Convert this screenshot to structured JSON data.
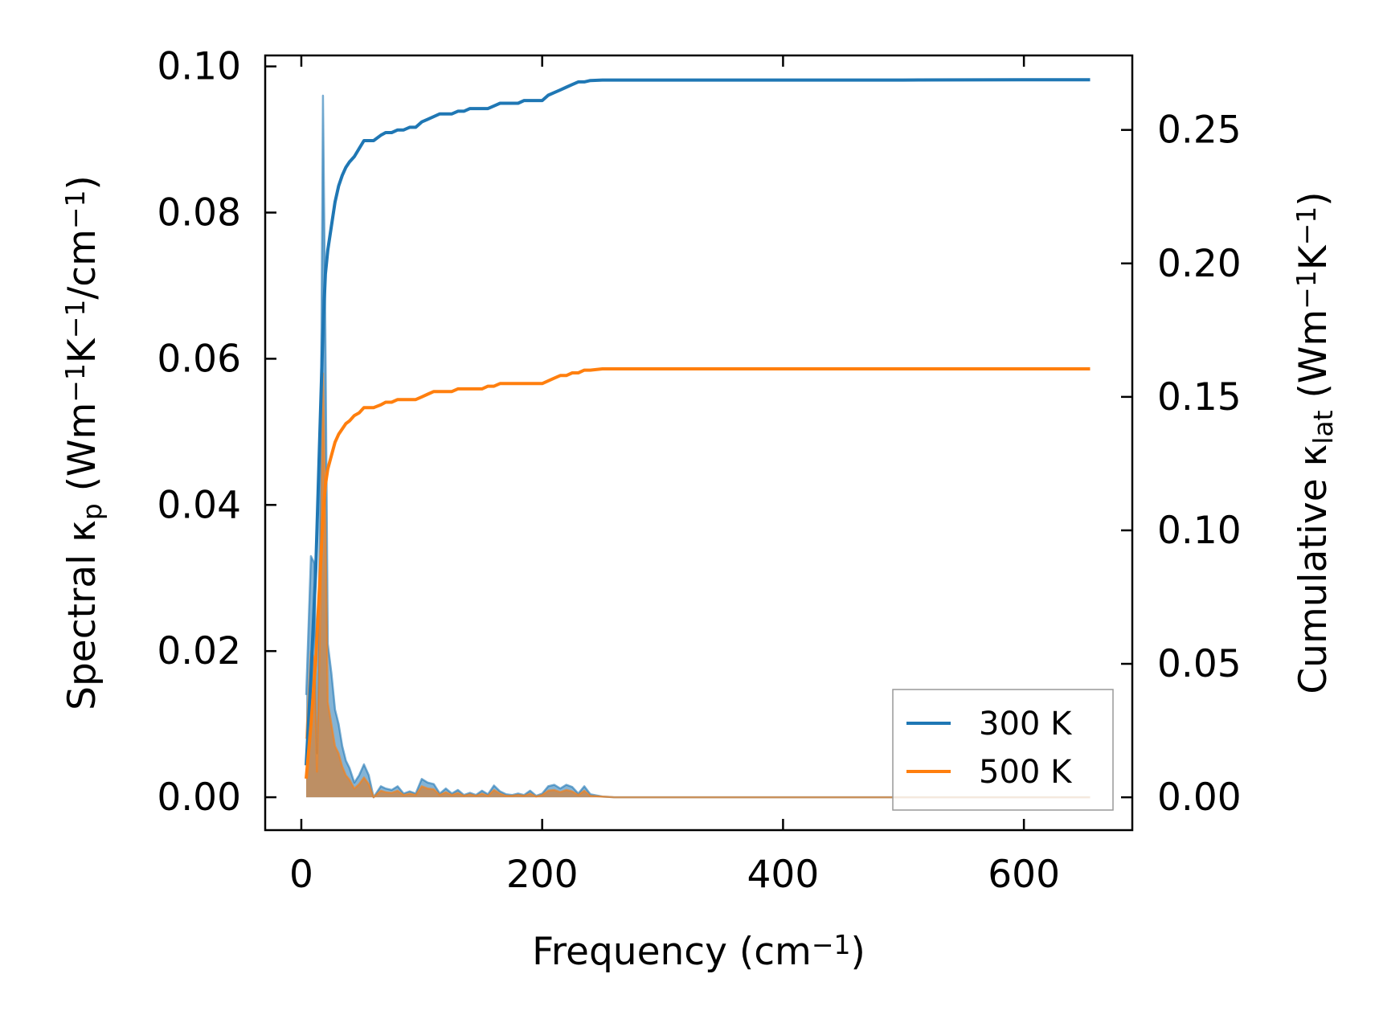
{
  "chart_data": {
    "type": "line",
    "xlabel": "Frequency (cm$^{-1}$)",
    "xlabel_parts": [
      "Frequency (cm",
      "−1",
      ")"
    ],
    "ylabel_left_parts": [
      "Spectral κ",
      "p",
      " (Wm",
      "−1",
      "K",
      "−1",
      "/cm",
      "−1",
      ")"
    ],
    "ylabel_right_parts": [
      "Cumulative κ",
      "lat",
      " (Wm",
      "−1",
      "K",
      "−1",
      ")"
    ],
    "xlim": [
      -30,
      690
    ],
    "ylim_left": [
      -0.0045,
      0.1015
    ],
    "ylim_right": [
      -0.0123,
      0.2779
    ],
    "xticks": [
      0,
      200,
      400,
      600
    ],
    "xtick_labels": [
      "0",
      "200",
      "400",
      "600"
    ],
    "yticks_left": [
      0.0,
      0.02,
      0.04,
      0.06,
      0.08,
      0.1
    ],
    "ytick_labels_left": [
      "0.00",
      "0.02",
      "0.04",
      "0.06",
      "0.08",
      "0.10"
    ],
    "yticks_right": [
      0.0,
      0.05,
      0.1,
      0.15,
      0.2,
      0.25
    ],
    "ytick_labels_right": [
      "0.00",
      "0.05",
      "0.10",
      "0.15",
      "0.20",
      "0.25"
    ],
    "legend": {
      "position": "lower-right",
      "entries": [
        "300 K",
        "500 K"
      ]
    },
    "colors": {
      "300 K": "#1f77b4",
      "500 K": "#ff7f0e",
      "fill_300K": "#1f77b4",
      "fill_500K": "#d0833e"
    },
    "spectral_series": [
      {
        "name": "300 K",
        "axis": "left",
        "x": [
          4,
          8,
          11,
          13,
          16,
          18,
          20,
          22,
          25,
          28,
          31,
          34,
          37,
          40,
          44,
          48,
          52,
          56,
          60,
          66,
          70,
          75,
          80,
          85,
          90,
          95,
          100,
          105,
          110,
          115,
          120,
          125,
          130,
          135,
          140,
          145,
          150,
          155,
          160,
          165,
          170,
          175,
          180,
          185,
          190,
          195,
          200,
          205,
          210,
          215,
          220,
          225,
          230,
          235,
          240,
          250,
          260,
          300,
          400,
          500,
          600,
          655
        ],
        "y": [
          0.014,
          0.033,
          0.032,
          0.006,
          0.045,
          0.096,
          0.064,
          0.021,
          0.017,
          0.012,
          0.01,
          0.007,
          0.005,
          0.004,
          0.002,
          0.003,
          0.0045,
          0.003,
          0.0,
          0.0015,
          0.0012,
          0.001,
          0.0015,
          0.0005,
          0.0008,
          0.0005,
          0.0025,
          0.002,
          0.0018,
          0.0005,
          0.0012,
          0.0005,
          0.001,
          0.0003,
          0.0006,
          0.0003,
          0.0009,
          0.0004,
          0.0016,
          0.0008,
          0.0004,
          0.0003,
          0.0005,
          0.0003,
          0.0009,
          0.0002,
          0.0005,
          0.0015,
          0.0017,
          0.0012,
          0.0017,
          0.0014,
          0.0005,
          0.0015,
          0.0004,
          0.0001,
          0.0,
          0.0,
          0.0,
          0.0,
          0.0,
          0.0
        ]
      },
      {
        "name": "500 K",
        "axis": "left",
        "x": [
          4,
          8,
          11,
          13,
          16,
          18,
          20,
          22,
          25,
          28,
          31,
          34,
          37,
          40,
          44,
          48,
          52,
          56,
          60,
          66,
          70,
          75,
          80,
          85,
          90,
          95,
          100,
          105,
          110,
          115,
          120,
          125,
          130,
          135,
          140,
          145,
          150,
          155,
          160,
          165,
          170,
          175,
          180,
          185,
          190,
          195,
          200,
          205,
          210,
          215,
          220,
          225,
          230,
          235,
          240,
          250,
          260,
          300,
          400,
          500,
          600,
          655
        ],
        "y": [
          0.008,
          0.02,
          0.019,
          0.0035,
          0.027,
          0.058,
          0.038,
          0.013,
          0.01,
          0.007,
          0.006,
          0.0042,
          0.003,
          0.0024,
          0.0012,
          0.0018,
          0.0027,
          0.0018,
          0.0,
          0.0009,
          0.0007,
          0.0006,
          0.0009,
          0.0003,
          0.0005,
          0.0003,
          0.0015,
          0.0012,
          0.0011,
          0.0003,
          0.0007,
          0.0003,
          0.0006,
          0.0002,
          0.0004,
          0.0002,
          0.0005,
          0.0002,
          0.001,
          0.0005,
          0.0002,
          0.0002,
          0.0003,
          0.0002,
          0.0005,
          0.0001,
          0.0003,
          0.0009,
          0.001,
          0.0007,
          0.001,
          0.0008,
          0.0003,
          0.0009,
          0.0002,
          0.0001,
          0.0,
          0.0,
          0.0,
          0.0,
          0.0,
          0.0
        ]
      }
    ],
    "series": [
      {
        "name": "300 K",
        "axis": "right",
        "x": [
          4,
          8,
          12,
          15,
          18,
          20,
          22,
          25,
          28,
          31,
          34,
          37,
          40,
          44,
          48,
          52,
          56,
          60,
          66,
          70,
          75,
          80,
          85,
          90,
          95,
          100,
          105,
          110,
          115,
          120,
          125,
          130,
          135,
          140,
          145,
          150,
          155,
          160,
          165,
          170,
          175,
          180,
          185,
          190,
          195,
          200,
          205,
          210,
          215,
          220,
          225,
          230,
          235,
          240,
          250,
          300,
          400,
          500,
          600,
          655
        ],
        "y": [
          0.012,
          0.045,
          0.085,
          0.13,
          0.175,
          0.196,
          0.205,
          0.214,
          0.223,
          0.229,
          0.233,
          0.236,
          0.238,
          0.24,
          0.243,
          0.246,
          0.246,
          0.246,
          0.248,
          0.249,
          0.249,
          0.25,
          0.25,
          0.251,
          0.251,
          0.253,
          0.254,
          0.255,
          0.256,
          0.256,
          0.256,
          0.257,
          0.257,
          0.258,
          0.258,
          0.258,
          0.258,
          0.259,
          0.26,
          0.26,
          0.26,
          0.26,
          0.261,
          0.261,
          0.261,
          0.261,
          0.263,
          0.264,
          0.265,
          0.266,
          0.267,
          0.268,
          0.268,
          0.2685,
          0.2687,
          0.2687,
          0.2687,
          0.2687,
          0.2688,
          0.2688
        ]
      },
      {
        "name": "500 K",
        "axis": "right",
        "x": [
          4,
          8,
          12,
          15,
          18,
          20,
          22,
          25,
          28,
          31,
          34,
          37,
          40,
          44,
          48,
          52,
          56,
          60,
          66,
          70,
          75,
          80,
          85,
          90,
          95,
          100,
          105,
          110,
          115,
          120,
          125,
          130,
          135,
          140,
          145,
          150,
          155,
          160,
          165,
          170,
          175,
          180,
          185,
          190,
          195,
          200,
          205,
          210,
          215,
          220,
          225,
          230,
          235,
          240,
          250,
          300,
          400,
          500,
          600,
          655
        ],
        "y": [
          0.007,
          0.027,
          0.051,
          0.078,
          0.105,
          0.117,
          0.123,
          0.128,
          0.133,
          0.136,
          0.138,
          0.14,
          0.141,
          0.143,
          0.144,
          0.146,
          0.146,
          0.146,
          0.147,
          0.148,
          0.148,
          0.149,
          0.149,
          0.149,
          0.149,
          0.15,
          0.151,
          0.152,
          0.152,
          0.152,
          0.152,
          0.153,
          0.153,
          0.153,
          0.153,
          0.153,
          0.154,
          0.154,
          0.155,
          0.155,
          0.155,
          0.155,
          0.155,
          0.155,
          0.155,
          0.155,
          0.156,
          0.157,
          0.158,
          0.158,
          0.159,
          0.159,
          0.16,
          0.16,
          0.1605,
          0.1605,
          0.1605,
          0.1605,
          0.1605,
          0.1605
        ]
      }
    ]
  }
}
